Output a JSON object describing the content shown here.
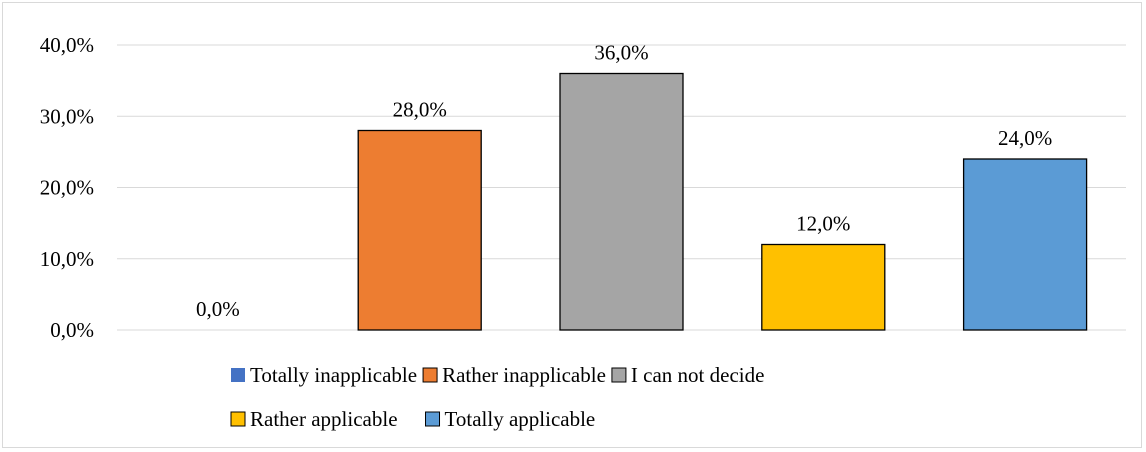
{
  "chart_data": {
    "type": "bar",
    "categories": [
      "Totally inapplicable",
      "Rather inapplicable",
      "I can not decide",
      "Rather applicable",
      "Totally applicable"
    ],
    "values": [
      0.0,
      28.0,
      36.0,
      12.0,
      24.0
    ],
    "value_labels": [
      "0,0%",
      "28,0%",
      "36,0%",
      "12,0%",
      "24,0%"
    ],
    "colors": [
      "#4472c4",
      "#ed7d31",
      "#a5a5a5",
      "#ffc000",
      "#5b9bd5"
    ],
    "y_ticks": [
      0,
      10,
      20,
      30,
      40
    ],
    "y_tick_labels": [
      "0,0%",
      "10,0%",
      "20,0%",
      "30,0%",
      "40,0%"
    ],
    "ylim": [
      0,
      40
    ],
    "grid": true,
    "legend_position": "bottom",
    "title": "",
    "xlabel": "",
    "ylabel": ""
  }
}
